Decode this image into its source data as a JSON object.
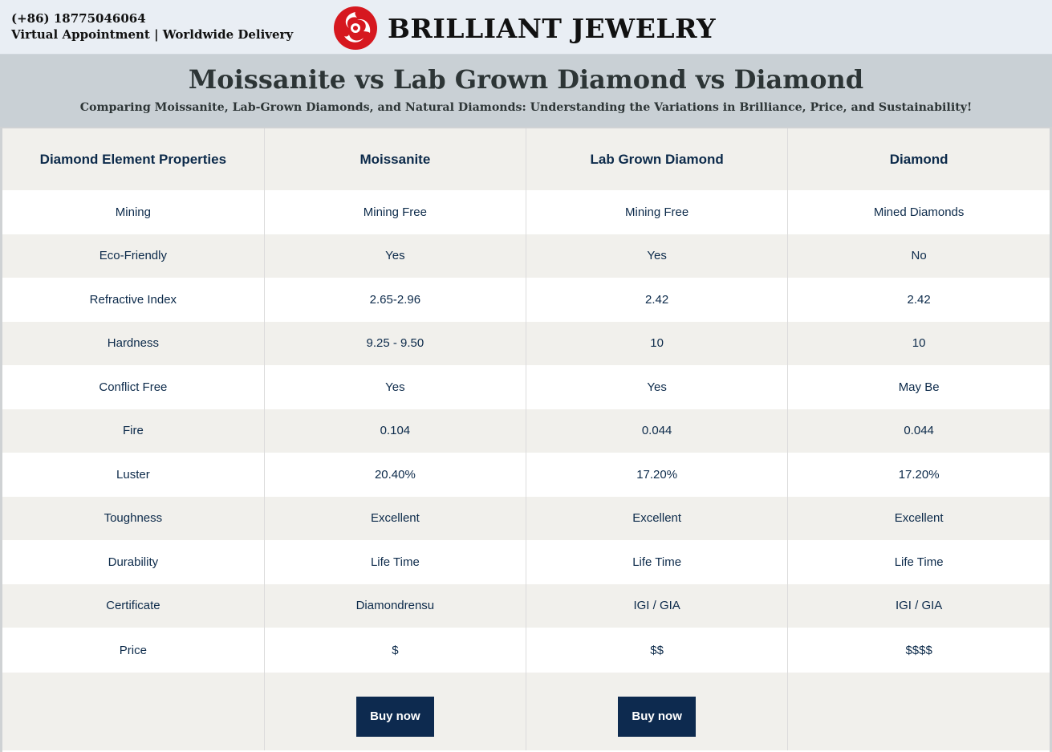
{
  "header": {
    "phone": "(+86) 18775046064",
    "tagline": "Virtual Appointment | Worldwide Delivery",
    "brand_name": "BRILLIANT JEWELRY",
    "logo_color": "#d6181f"
  },
  "hero": {
    "title": "Moissanite vs Lab Grown Diamond vs Diamond",
    "subtitle": "Comparing Moissanite, Lab-Grown Diamonds, and Natural Diamonds: Understanding the Variations in Brilliance, Price, and Sustainability!"
  },
  "table": {
    "headers": [
      "Diamond Element Properties",
      "Moissanite",
      "Lab Grown Diamond",
      "Diamond"
    ],
    "rows": [
      [
        "Mining",
        "Mining Free",
        "Mining Free",
        "Mined Diamonds"
      ],
      [
        "Eco-Friendly",
        "Yes",
        "Yes",
        "No"
      ],
      [
        "Refractive Index",
        "2.65-2.96",
        "2.42",
        "2.42"
      ],
      [
        "Hardness",
        "9.25 - 9.50",
        "10",
        "10"
      ],
      [
        "Conflict Free",
        "Yes",
        "Yes",
        "May Be"
      ],
      [
        "Fire",
        "0.104",
        "0.044",
        "0.044"
      ],
      [
        "Luster",
        "20.40%",
        "17.20%",
        "17.20%"
      ],
      [
        "Toughness",
        "Excellent",
        "Excellent",
        "Excellent"
      ],
      [
        "Durability",
        "Life Time",
        "Life Time",
        "Life Time"
      ],
      [
        "Certificate",
        "Diamondrensu",
        "IGI / GIA",
        "IGI / GIA"
      ],
      [
        "Price",
        "$",
        "$$",
        "$$$$"
      ]
    ],
    "buy_labels": [
      "Buy now",
      "Buy now"
    ]
  },
  "colors": {
    "topbar_bg": "#e9eef4",
    "hero_bg": "#c9d0d5",
    "stripe_bg": "#f1f0ec",
    "button_bg": "#0d2a4f",
    "text": "#0c2a4a"
  }
}
